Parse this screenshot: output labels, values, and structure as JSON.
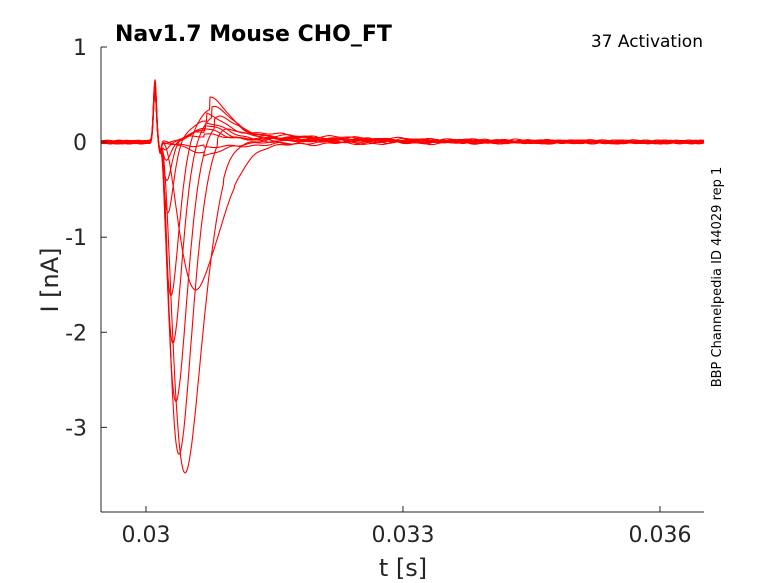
{
  "chart_data": {
    "type": "line",
    "title": "Nav1.7  Mouse  CHO_FT",
    "subtitle": "37  Activation",
    "side_label": "BBP Channelpedia ID 44029 rep 1",
    "xlabel": "t [s]",
    "ylabel": "I [nA]",
    "xlim": [
      0.029475,
      0.036514
    ],
    "ylim": [
      -3.89,
      1.0
    ],
    "xticks": [
      0.03,
      0.033,
      0.036
    ],
    "xtick_labels": [
      "0.03",
      "0.033",
      "0.036"
    ],
    "yticks": [
      1,
      0,
      -1,
      -2,
      -3
    ],
    "ytick_labels": [
      "1",
      "0",
      "-1",
      "-2",
      "-3"
    ],
    "grid": false,
    "line_color": "#ff0000",
    "stimulus_artifact": {
      "t": 0.030105,
      "peak_I": 0.62
    },
    "series": [
      {
        "name": "trace 1",
        "onset_t": 0.03016,
        "peak_t": 0.030455,
        "peak_I": -3.48,
        "overshoot_I": 0.12
      },
      {
        "name": "trace 2",
        "onset_t": 0.03016,
        "peak_t": 0.030385,
        "peak_I": -3.29,
        "overshoot_I": 0.18
      },
      {
        "name": "trace 3",
        "onset_t": 0.03016,
        "peak_t": 0.03035,
        "peak_I": -2.75,
        "overshoot_I": 0.24
      },
      {
        "name": "trace 4",
        "onset_t": 0.03016,
        "peak_t": 0.030315,
        "peak_I": -2.15,
        "overshoot_I": 0.28
      },
      {
        "name": "trace 5",
        "onset_t": 0.03016,
        "peak_t": 0.030292,
        "peak_I": -1.64,
        "overshoot_I": 0.33
      },
      {
        "name": "trace 6",
        "onset_t": 0.03018,
        "peak_t": 0.030584,
        "peak_I": -1.56,
        "overshoot_I": 0.05
      },
      {
        "name": "trace 7",
        "onset_t": 0.03016,
        "peak_t": 0.030257,
        "peak_I": -0.75,
        "overshoot_I": 0.22
      },
      {
        "name": "trace 8",
        "onset_t": 0.03016,
        "peak_t": 0.030245,
        "peak_I": -0.42,
        "overshoot_I": 0.15
      },
      {
        "name": "trace 9",
        "onset_t": 0.03016,
        "peak_t": 0.03024,
        "peak_I": -0.2,
        "overshoot_I": 0.12
      },
      {
        "name": "trace 10",
        "onset_t": 0.03016,
        "peak_t": 0.03023,
        "peak_I": -0.08,
        "overshoot_I": 0.1
      },
      {
        "name": "trace 11",
        "onset_t": 0.03016,
        "peak_t": 0.03023,
        "peak_I": -0.03,
        "overshoot_I": 0.07
      },
      {
        "name": "trace 12",
        "onset_t": 0.03016,
        "peak_t": 0.03023,
        "peak_I": 0.0,
        "overshoot_I": -0.1
      },
      {
        "name": "trace 13",
        "onset_t": 0.03016,
        "peak_t": 0.03023,
        "peak_I": 0.0,
        "overshoot_I": -0.05
      }
    ]
  }
}
